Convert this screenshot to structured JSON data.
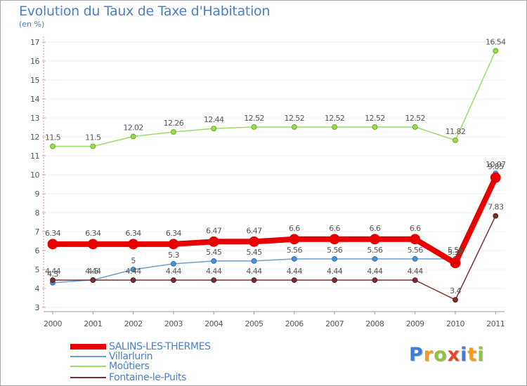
{
  "chart_data": {
    "type": "line",
    "title": "Evolution du Taux de Taxe d'Habitation",
    "ylabel": "(en %)",
    "xlabel": "",
    "ylim": [
      3,
      17
    ],
    "yticks": [
      3,
      4,
      5,
      6,
      7,
      8,
      9,
      10,
      11,
      12,
      13,
      14,
      15,
      16,
      17
    ],
    "categories": [
      "2000",
      "2001",
      "2002",
      "2003",
      "2004",
      "2005",
      "2006",
      "2007",
      "2008",
      "2009",
      "2010",
      "2011"
    ],
    "series": [
      {
        "name": "SALINS-LES-THERMES",
        "color": "#e80000",
        "values": [
          6.34,
          6.34,
          6.34,
          6.34,
          6.47,
          6.47,
          6.6,
          6.6,
          6.6,
          6.6,
          5.34,
          9.85
        ],
        "labels": [
          "6.34",
          "6.34",
          "6.34",
          "6.34",
          "6.47",
          "6.47",
          "6.6",
          "6.6",
          "6.6",
          "6.6",
          "5.34",
          "9.85"
        ]
      },
      {
        "name": "Villarlurin",
        "color": "#6f9fcf",
        "values": [
          4.3,
          4.45,
          5,
          5.3,
          5.45,
          5.45,
          5.56,
          5.56,
          5.56,
          5.56,
          5.56,
          10.07
        ],
        "labels": [
          "4.3",
          "4.5",
          "5",
          "5.3",
          "5.45",
          "5.45",
          "5.56",
          "5.56",
          "5.56",
          "5.56",
          "5.56",
          "10.07"
        ]
      },
      {
        "name": "Moûtiers",
        "color": "#99dd66",
        "values": [
          11.5,
          11.5,
          12.02,
          12.26,
          12.44,
          12.52,
          12.52,
          12.52,
          12.52,
          12.52,
          11.82,
          16.54
        ],
        "labels": [
          "11.5",
          "11.5",
          "12.02",
          "12.26",
          "12.44",
          "12.52",
          "12.52",
          "12.52",
          "12.52",
          "12.52",
          "11.82",
          "16.54"
        ]
      },
      {
        "name": "Fontaine-le-Puits",
        "color": "#7a2e2e",
        "values": [
          4.44,
          4.44,
          4.44,
          4.44,
          4.44,
          4.44,
          4.44,
          4.44,
          4.44,
          4.44,
          3.4,
          7.83
        ],
        "labels": [
          "4.44",
          "4.44",
          "4.44",
          "4.44",
          "4.44",
          "4.44",
          "4.44",
          "4.44",
          "4.44",
          "4.44",
          "3.4",
          "7.83"
        ]
      }
    ]
  },
  "legend": [
    {
      "label": "SALINS-LES-THERMES",
      "color": "#e80000"
    },
    {
      "label": "Villarlurin",
      "color": "#6f9fcf"
    },
    {
      "label": "Moûtiers",
      "color": "#99dd66"
    },
    {
      "label": "Fontaine-le-Puits",
      "color": "#7a2e2e"
    }
  ],
  "brand": {
    "letters": [
      "P",
      "r",
      "o",
      "x",
      "i",
      "t",
      "i"
    ],
    "colors": [
      "#3d7fd6",
      "#f39c1a",
      "#8cc63f",
      "#e8462b",
      "#3d7fd6",
      "#f39c1a",
      "#8cc63f"
    ]
  }
}
